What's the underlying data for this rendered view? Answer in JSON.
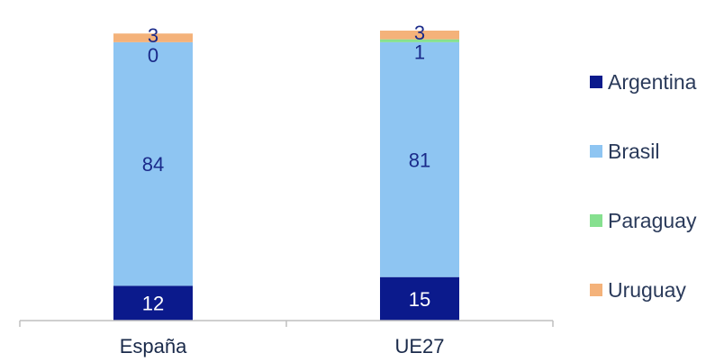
{
  "chart_data": {
    "type": "bar",
    "stacked": true,
    "categories": [
      "España",
      "UE27"
    ],
    "series": [
      {
        "name": "Argentina",
        "values": [
          12,
          15
        ],
        "color": "#0b1a8c",
        "label_color": "#ffffff"
      },
      {
        "name": "Brasil",
        "values": [
          84,
          81
        ],
        "color": "#8ec5f2",
        "label_color": "#1a2a8a"
      },
      {
        "name": "Paraguay",
        "values": [
          0,
          1
        ],
        "color": "#86e08f",
        "label_color": "#1a2a8a"
      },
      {
        "name": "Uruguay",
        "values": [
          3,
          3
        ],
        "color": "#f4b27a",
        "label_color": "#1a2a8a"
      }
    ],
    "ylim": [
      0,
      100
    ],
    "legend": "right",
    "grid": false,
    "title": "",
    "xlabel": "",
    "ylabel": ""
  }
}
